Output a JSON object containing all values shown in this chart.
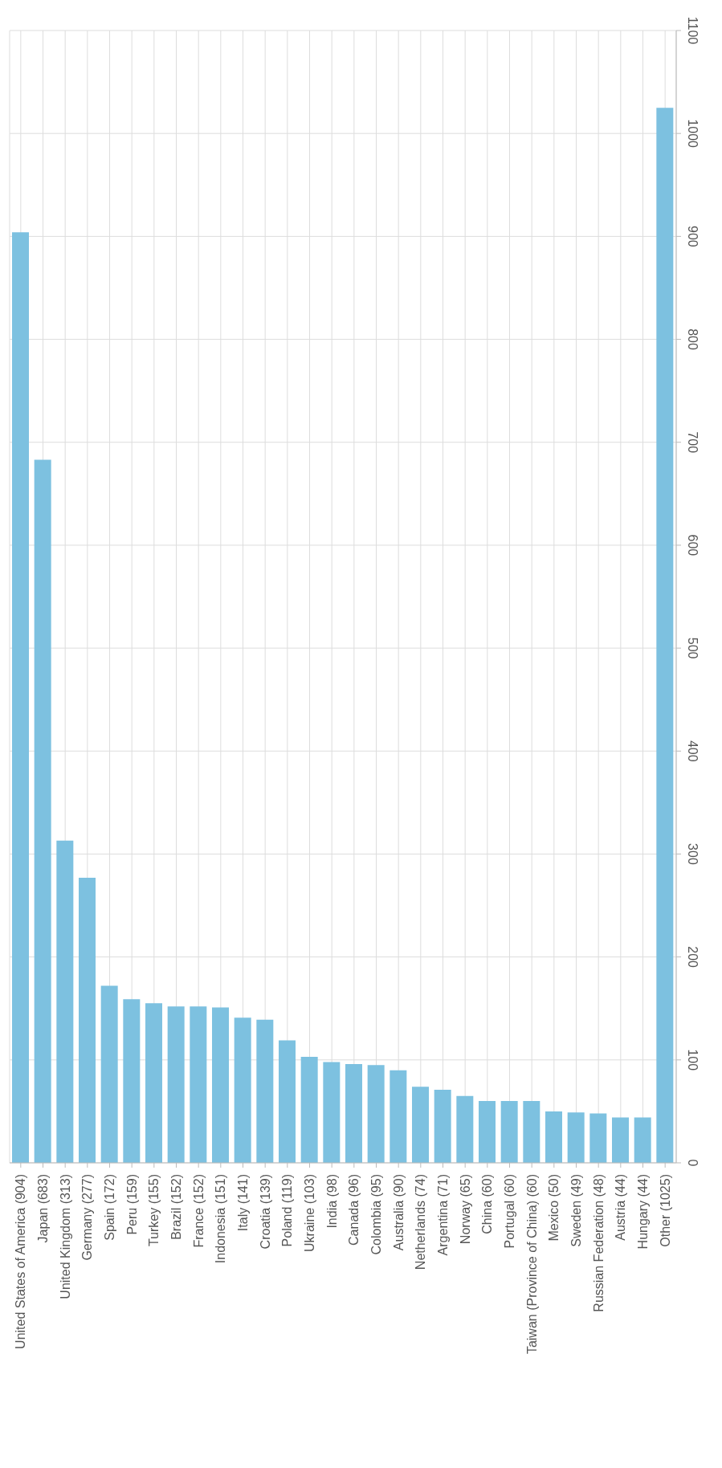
{
  "chart_data": {
    "type": "bar",
    "categories": [
      "United States of America (904)",
      "Japan (683)",
      "United Kingdom (313)",
      "Germany (277)",
      "Spain (172)",
      "Peru (159)",
      "Turkey (155)",
      "Brazil (152)",
      "France (152)",
      "Indonesia (151)",
      "Italy (141)",
      "Croatia (139)",
      "Poland (119)",
      "Ukraine (103)",
      "India (98)",
      "Canada (96)",
      "Colombia (95)",
      "Australia (90)",
      "Netherlands (74)",
      "Argentina (71)",
      "Norway (65)",
      "China (60)",
      "Portugal (60)",
      "Taiwan (Province of China) (60)",
      "Mexico (50)",
      "Sweden (49)",
      "Russian Federation (48)",
      "Austria (44)",
      "Hungary (44)",
      "Other (1025)"
    ],
    "values": [
      904,
      683,
      313,
      277,
      172,
      159,
      155,
      152,
      152,
      151,
      141,
      139,
      119,
      103,
      98,
      96,
      95,
      90,
      74,
      71,
      65,
      60,
      60,
      60,
      50,
      49,
      48,
      44,
      44,
      1025
    ],
    "color": "#7dc1e0",
    "ylim": [
      0,
      1100
    ],
    "yticks": [
      0,
      100,
      200,
      300,
      400,
      500,
      600,
      700,
      800,
      900,
      1000,
      1100
    ],
    "grid": true
  }
}
